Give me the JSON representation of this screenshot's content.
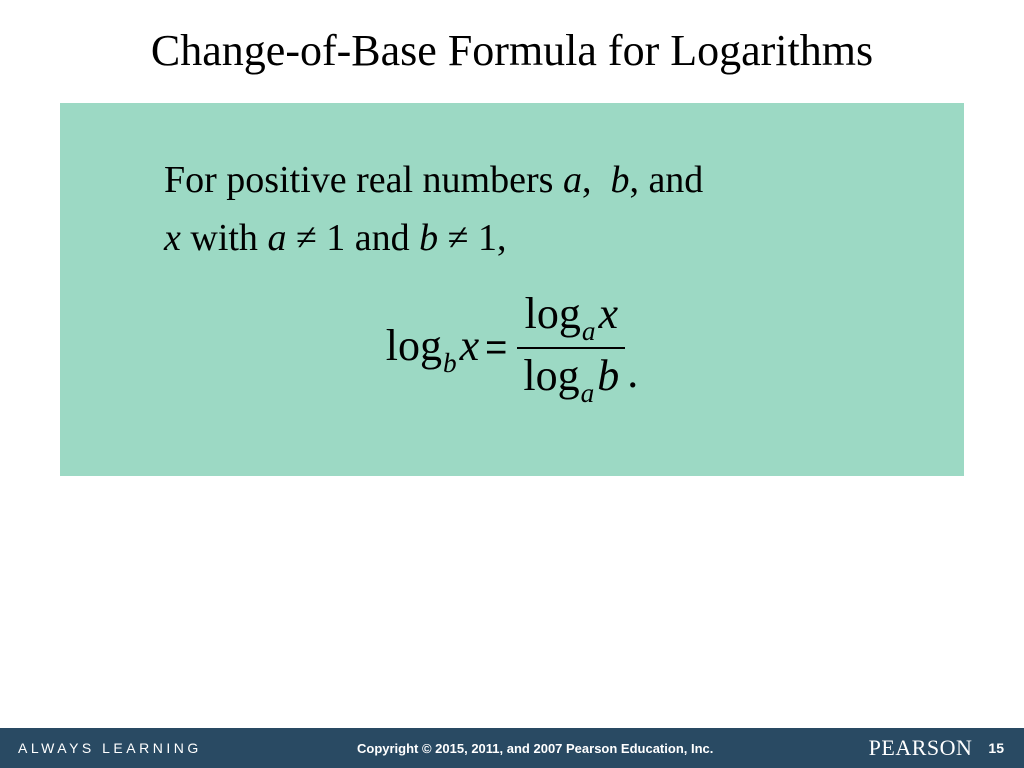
{
  "slide": {
    "title": "Change-of-Base Formula for Logarithms",
    "condition_parts": {
      "p1": "For positive real numbers ",
      "a": "a",
      "c1": ", ",
      "b": "b",
      "c2": ", and",
      "x": "x",
      "p2": " with ",
      "a2": "a",
      "ne1": " ≠ 1 and ",
      "b2": "b",
      "ne2": " ≠ 1,"
    },
    "formula": {
      "lhs_log": "log",
      "lhs_sub": "b",
      "lhs_arg": "x",
      "eq": "=",
      "num_log": "log",
      "num_sub": "a",
      "num_arg": "x",
      "den_log": "log",
      "den_sub": "a",
      "den_arg": "b",
      "period": "."
    },
    "styling": {
      "box_bg": "#9cd9c4",
      "title_fontsize": 44,
      "body_fontsize": 38,
      "formula_fontsize": 44,
      "text_color": "#000000",
      "font_family": "Times New Roman"
    }
  },
  "footer": {
    "tagline": "ALWAYS LEARNING",
    "copyright": "Copyright © 2015, 2011, and 2007 Pearson Education, Inc.",
    "brand": "PEARSON",
    "page": "15",
    "bg_color": "#294a63",
    "text_color": "#ffffff"
  }
}
